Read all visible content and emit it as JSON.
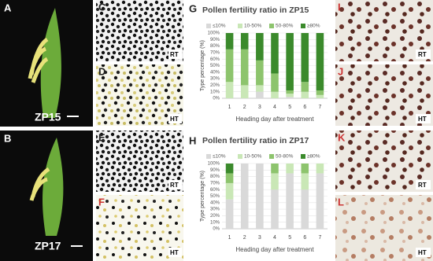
{
  "panels": [
    {
      "label": "A",
      "caption": "ZP15"
    },
    {
      "label": "B",
      "caption": "ZP17"
    },
    {
      "label": "C",
      "caption": "RT"
    },
    {
      "label": "D",
      "caption": "HT"
    },
    {
      "label": "E",
      "caption": "RT"
    },
    {
      "label": "F",
      "caption": "HT"
    },
    {
      "label": "G"
    },
    {
      "label": "H"
    },
    {
      "label": "I",
      "caption": "RT"
    },
    {
      "label": "J",
      "caption": "HT"
    },
    {
      "label": "K",
      "caption": "RT"
    },
    {
      "label": "L",
      "caption": "HT"
    }
  ],
  "chart_data": [
    {
      "type": "bar",
      "stacked": true,
      "title": "Pollen fertility ratio in ZP15",
      "xlabel": "Heading day after treatment",
      "ylabel": "Type percentage (%)",
      "categories": [
        "1",
        "2",
        "3",
        "4",
        "5",
        "6",
        "7"
      ],
      "series": [
        {
          "name": "≤10%",
          "color": "#d9d9d9",
          "values": [
            0,
            0,
            10,
            0,
            2,
            0,
            0
          ]
        },
        {
          "name": "10-50%",
          "color": "#c9e7b6",
          "values": [
            25,
            20,
            10,
            10,
            5,
            10,
            5
          ]
        },
        {
          "name": "50-80%",
          "color": "#8dc46d",
          "values": [
            50,
            55,
            38,
            28,
            5,
            15,
            7
          ]
        },
        {
          "name": "≥80%",
          "color": "#3b8a2c",
          "values": [
            25,
            25,
            42,
            62,
            88,
            75,
            88
          ]
        }
      ],
      "ylim": [
        0,
        100
      ],
      "yticks": [
        {
          "value": 0,
          "label": "0%"
        },
        {
          "value": 10,
          "label": "10%"
        },
        {
          "value": 20,
          "label": "20%"
        },
        {
          "value": 30,
          "label": "30%"
        },
        {
          "value": 40,
          "label": "40%"
        },
        {
          "value": 50,
          "label": "50%"
        },
        {
          "value": 60,
          "label": "60%"
        },
        {
          "value": 70,
          "label": "70%"
        },
        {
          "value": 80,
          "label": "80%"
        },
        {
          "value": 90,
          "label": "90%"
        },
        {
          "value": 100,
          "label": "100%"
        }
      ],
      "grid": true,
      "legend_position": "top"
    },
    {
      "type": "bar",
      "stacked": true,
      "title": "Pollen fertility ratio in ZP17",
      "xlabel": "Heading day after treatment",
      "ylabel": "Type percentage (%)",
      "categories": [
        "1",
        "2",
        "3",
        "4",
        "5",
        "6",
        "7"
      ],
      "series": [
        {
          "name": "≤10%",
          "color": "#d9d9d9",
          "values": [
            45,
            100,
            100,
            60,
            85,
            60,
            85
          ]
        },
        {
          "name": "10-50%",
          "color": "#c9e7b6",
          "values": [
            25,
            0,
            0,
            25,
            15,
            25,
            15
          ]
        },
        {
          "name": "50-80%",
          "color": "#8dc46d",
          "values": [
            15,
            0,
            0,
            15,
            0,
            15,
            0
          ]
        },
        {
          "name": "≥80%",
          "color": "#3b8a2c",
          "values": [
            15,
            0,
            0,
            0,
            0,
            0,
            0
          ]
        }
      ],
      "ylim": [
        0,
        100
      ],
      "yticks": [
        {
          "value": 0,
          "label": "0%"
        },
        {
          "value": 10,
          "label": "10%"
        },
        {
          "value": 20,
          "label": "20%"
        },
        {
          "value": 30,
          "label": "30%"
        },
        {
          "value": 40,
          "label": "40%"
        },
        {
          "value": 50,
          "label": "50%"
        },
        {
          "value": 60,
          "label": "60%"
        },
        {
          "value": 70,
          "label": "70%"
        },
        {
          "value": 80,
          "label": "80%"
        },
        {
          "value": 90,
          "label": "90%"
        },
        {
          "value": 100,
          "label": "100%"
        }
      ],
      "grid": true,
      "legend_position": "top"
    }
  ]
}
